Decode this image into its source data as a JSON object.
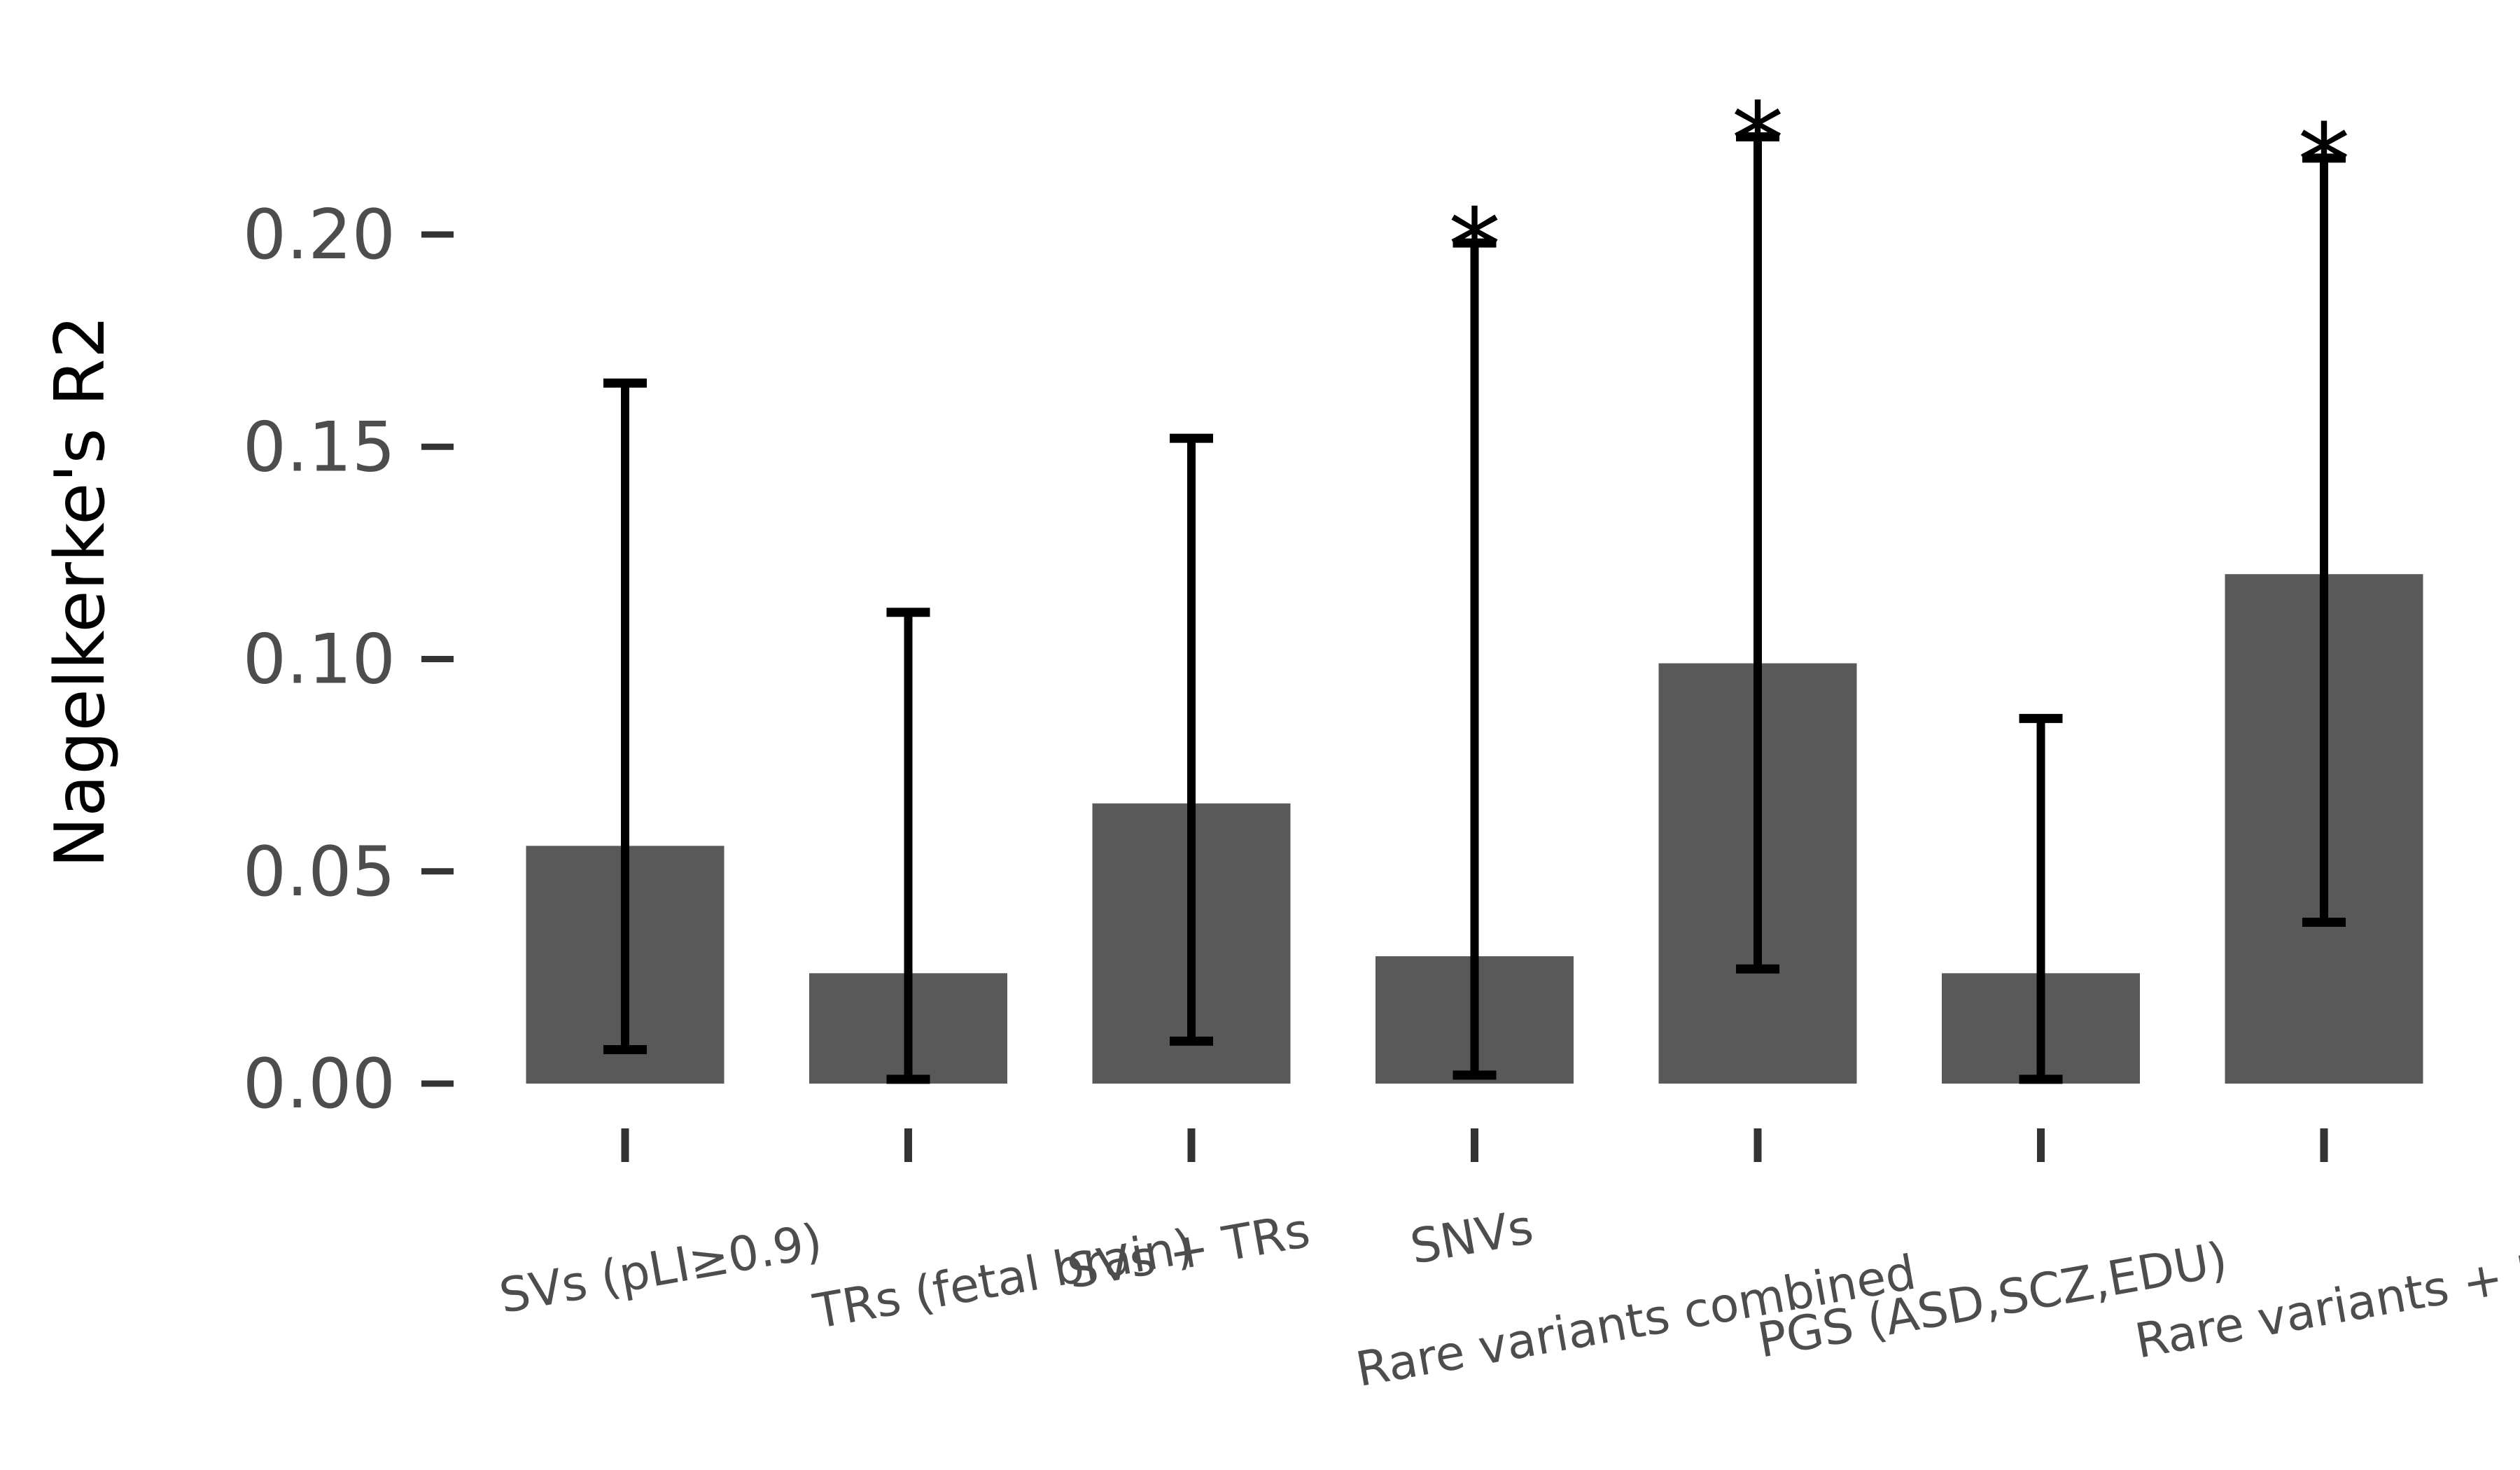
{
  "chart_data": {
    "type": "bar",
    "title": "",
    "xlabel": "",
    "ylabel": "Nagelkerke's R2",
    "ylim": [
      0,
      0.23
    ],
    "yticks": [
      0.0,
      0.05,
      0.1,
      0.15,
      0.2
    ],
    "ytick_labels": [
      "0.00",
      "0.05",
      "0.10",
      "0.15",
      "0.20"
    ],
    "categories": [
      "SVs (pLI≥0.9)",
      "TRs (fetal brain)",
      "SVs + TRs",
      "SNVs",
      "Rare variants combined",
      "PGS (ASD,SCZ,EDU)",
      "Rare variants + PGS"
    ],
    "values": [
      0.056,
      0.026,
      0.066,
      0.03,
      0.099,
      0.026,
      0.12
    ],
    "ci_low": [
      0.008,
      0.001,
      0.01,
      0.002,
      0.027,
      0.001,
      0.038
    ],
    "ci_high": [
      0.165,
      0.111,
      0.152,
      0.198,
      0.223,
      0.086,
      0.218
    ],
    "significance": [
      "",
      "",
      "",
      "*",
      "*",
      "",
      "*"
    ],
    "grid": false,
    "colors": {
      "bar": "#595959",
      "errorbar": "#000000",
      "tick": "#333333",
      "ticklabel": "#4d4d4d",
      "axislabel": "#000000"
    }
  }
}
